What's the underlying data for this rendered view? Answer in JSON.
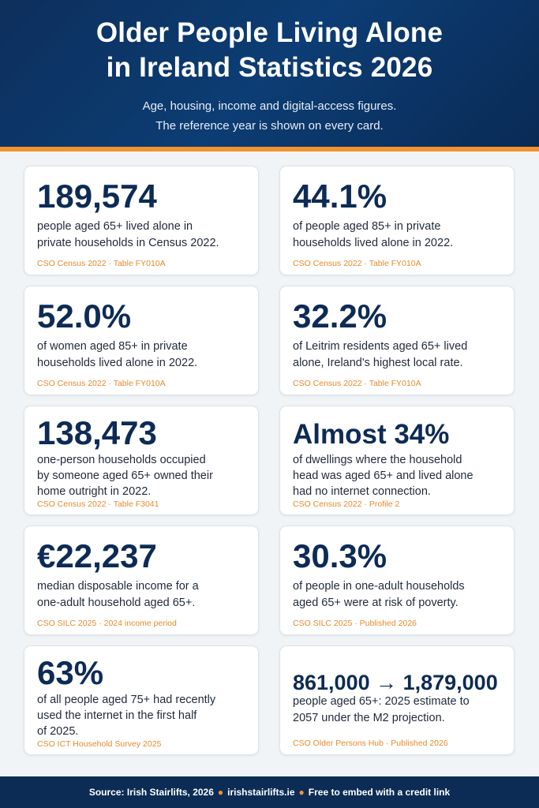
{
  "header": {
    "title_line1": "Older People Living Alone",
    "title_line2": "in Ireland Statistics 2026",
    "subtitle_line1": "Age, housing, income and digital-access figures.",
    "subtitle_line2": "The reference year is shown on every card.",
    "accent_color": "#f1932f",
    "background_color": "#0d2f5c"
  },
  "cards": [
    {
      "stat": "189,574",
      "desc_lines": [
        "people aged 65+ lived alone in",
        "private households in Census 2022."
      ],
      "source": "CSO Census 2022 · Table FY010A"
    },
    {
      "stat": "44.1%",
      "desc_lines": [
        "of people aged 85+ in private",
        "households lived alone in 2022."
      ],
      "source": "CSO Census 2022 · Table FY010A"
    },
    {
      "stat": "52.0%",
      "desc_lines": [
        "of women aged 85+ in private",
        "households lived alone in 2022."
      ],
      "source": "CSO Census 2022 · Table FY010A"
    },
    {
      "stat": "32.2%",
      "desc_lines": [
        "of Leitrim residents aged 65+ lived",
        "alone, Ireland's highest local rate."
      ],
      "source": "CSO Census 2022 · Table FY010A"
    },
    {
      "stat": "138,473",
      "desc_lines": [
        "one-person households occupied",
        "by someone aged 65+ owned their",
        "home outright in 2022."
      ],
      "source": "CSO Census 2022 · Table F3041"
    },
    {
      "stat": "Almost 34%",
      "desc_lines": [
        "of dwellings where the household",
        "head was aged 65+ and lived alone",
        "had no internet connection."
      ],
      "source": "CSO Census 2022 · Profile 2"
    },
    {
      "stat": "€22,237",
      "desc_lines": [
        "median disposable income for a",
        "one-adult household aged 65+."
      ],
      "source": "CSO SILC 2025 · 2024 income period"
    },
    {
      "stat": "30.3%",
      "desc_lines": [
        "of people in one-adult households",
        "aged 65+ were at risk of poverty."
      ],
      "source": "CSO SILC 2025 · Published 2026"
    },
    {
      "stat": "63%",
      "desc_lines": [
        "of all people aged 75+ had recently",
        "used the internet in the first half",
        "of 2025."
      ],
      "source": "CSO ICT Household Survey 2025"
    },
    {
      "stat": "861,000 → 1,879,000",
      "desc_lines": [
        "people aged 65+: 2025 estimate to",
        "2057 under the M2 projection."
      ],
      "source": "CSO Older Persons Hub · Published 2026"
    }
  ],
  "footer": {
    "source_text": "Source: Irish Stairlifts, 2026",
    "site": "irishstairlifts.ie",
    "embed_text": "Free to embed with a credit link",
    "separator": "●"
  }
}
